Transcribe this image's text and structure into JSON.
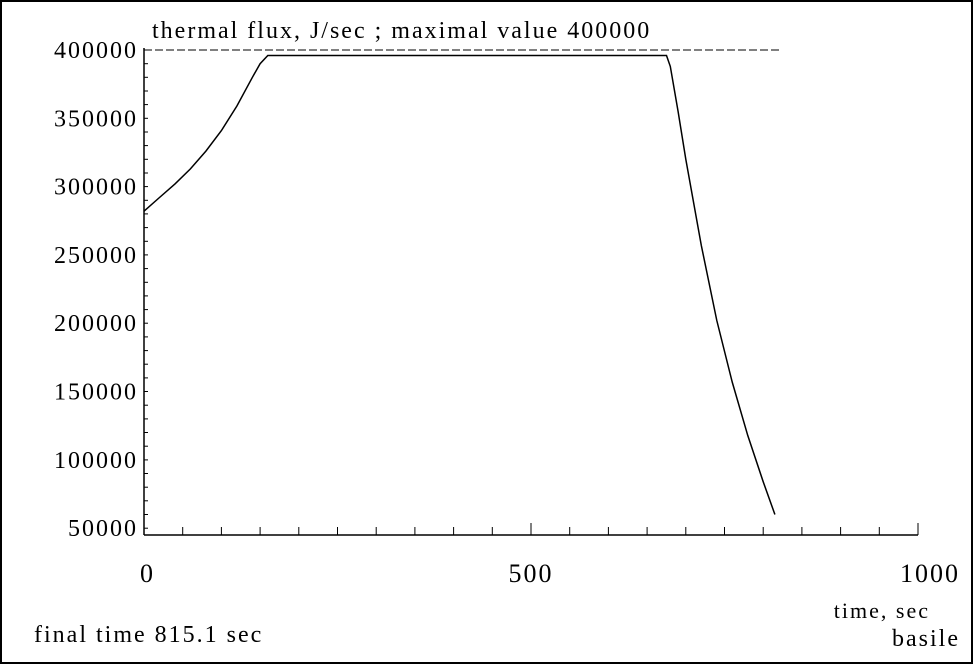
{
  "chart_data": {
    "type": "line",
    "title": "thermal flux, J/sec ; maximal value 400000",
    "xlabel": "time, sec",
    "ylabel": "",
    "xlim": [
      0,
      1000
    ],
    "ylim": [
      45000,
      400000
    ],
    "x_ticks": [
      0,
      500,
      1000
    ],
    "y_ticks": [
      50000,
      100000,
      150000,
      200000,
      250000,
      300000,
      350000,
      400000
    ],
    "grid": false,
    "series": [
      {
        "x": [
          0,
          20,
          40,
          60,
          80,
          100,
          120,
          140,
          150,
          160,
          170,
          675,
          680,
          690,
          700,
          720,
          740,
          760,
          780,
          800,
          815.1
        ],
        "y": [
          282000,
          292000,
          302000,
          313000,
          326000,
          341000,
          359000,
          380000,
          390000,
          396000,
          396000,
          396000,
          388000,
          355000,
          320000,
          257000,
          202000,
          157000,
          118000,
          84000,
          60000
        ]
      }
    ]
  },
  "footer": {
    "final_time": "final time  815.1 sec",
    "model_name": "basile"
  }
}
